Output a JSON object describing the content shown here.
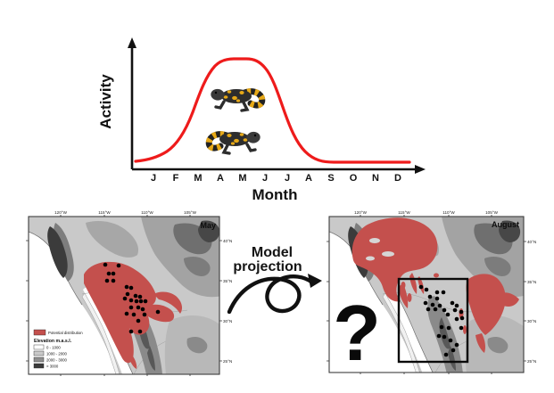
{
  "figure": {
    "activity_chart": {
      "type": "line",
      "y_axis_label": "Activity",
      "x_axis_label": "Month",
      "months": [
        "J",
        "F",
        "M",
        "A",
        "M",
        "J",
        "J",
        "A",
        "S",
        "O",
        "N",
        "D"
      ],
      "activity_values_normalized": [
        0.02,
        0.08,
        0.3,
        0.85,
        1.0,
        1.0,
        0.55,
        0.15,
        0.03,
        0.02,
        0.02,
        0.02
      ],
      "curve_color": "#EE1B1B",
      "species_illustration": "gila-monster"
    },
    "projection": {
      "line1": "Model",
      "line2": "projection"
    },
    "maps": {
      "may": {
        "title": "May",
        "lon_ticks": [
          "120°W",
          "115°W",
          "110°W",
          "105°W"
        ],
        "lat_ticks": [
          "40°N",
          "35°N",
          "30°N",
          "25°N"
        ],
        "legend": {
          "distribution_label": "Potential distribution",
          "elevation_title": "Elevation m.a.s.l.",
          "elevation_classes": [
            "0 - 1000",
            "1000 - 2000",
            "2000 - 3000",
            "> 3000"
          ]
        },
        "occurrence_points": [
          [
            118,
            297
          ],
          [
            133,
            298
          ],
          [
            122,
            307
          ],
          [
            127,
            307
          ],
          [
            120,
            315
          ],
          [
            127,
            315
          ],
          [
            142,
            322
          ],
          [
            147,
            323
          ],
          [
            143,
            330
          ],
          [
            152,
            332
          ],
          [
            157,
            333
          ],
          [
            140,
            335
          ],
          [
            147,
            337
          ],
          [
            153,
            338
          ],
          [
            158,
            338
          ],
          [
            163,
            338
          ],
          [
            147,
            345
          ],
          [
            155,
            345
          ],
          [
            160,
            347
          ],
          [
            177,
            350
          ],
          [
            142,
            352
          ],
          [
            150,
            353
          ],
          [
            162,
            353
          ],
          [
            155,
            360
          ],
          [
            147,
            372
          ],
          [
            157,
            372
          ]
        ]
      },
      "august": {
        "title": "August",
        "lon_ticks": [
          "120°W",
          "115°W",
          "110°W",
          "105°W"
        ],
        "lat_ticks": [
          "40°N",
          "35°N",
          "30°N",
          "25°N"
        ],
        "unknown_marker": "?",
        "occurrence_points": [
          [
            472,
            322
          ],
          [
            478,
            325
          ],
          [
            490,
            328
          ],
          [
            497,
            328
          ],
          [
            482,
            333
          ],
          [
            490,
            335
          ],
          [
            477,
            340
          ],
          [
            485,
            342
          ],
          [
            493,
            343
          ],
          [
            507,
            340
          ],
          [
            512,
            343
          ],
          [
            480,
            347
          ],
          [
            488,
            347
          ],
          [
            498,
            348
          ],
          [
            510,
            348
          ],
          [
            517,
            350
          ],
          [
            502,
            353
          ],
          [
            512,
            358
          ],
          [
            518,
            357
          ],
          [
            495,
            367
          ],
          [
            503,
            368
          ],
          [
            517,
            368
          ],
          [
            492,
            377
          ],
          [
            498,
            378
          ],
          [
            505,
            382
          ],
          [
            512,
            387
          ],
          [
            508,
            393
          ],
          [
            500,
            398
          ]
        ]
      }
    },
    "colors": {
      "distribution_red": "#C4504D",
      "curve_red": "#EE1B1B",
      "elevation_0_1000": "#FFFFFF",
      "elevation_1000_2000": "#C9C9C9",
      "elevation_2000_3000": "#8F8F8F",
      "elevation_gt_3000": "#3B3B3B",
      "occurrence_black": "#000000"
    }
  }
}
